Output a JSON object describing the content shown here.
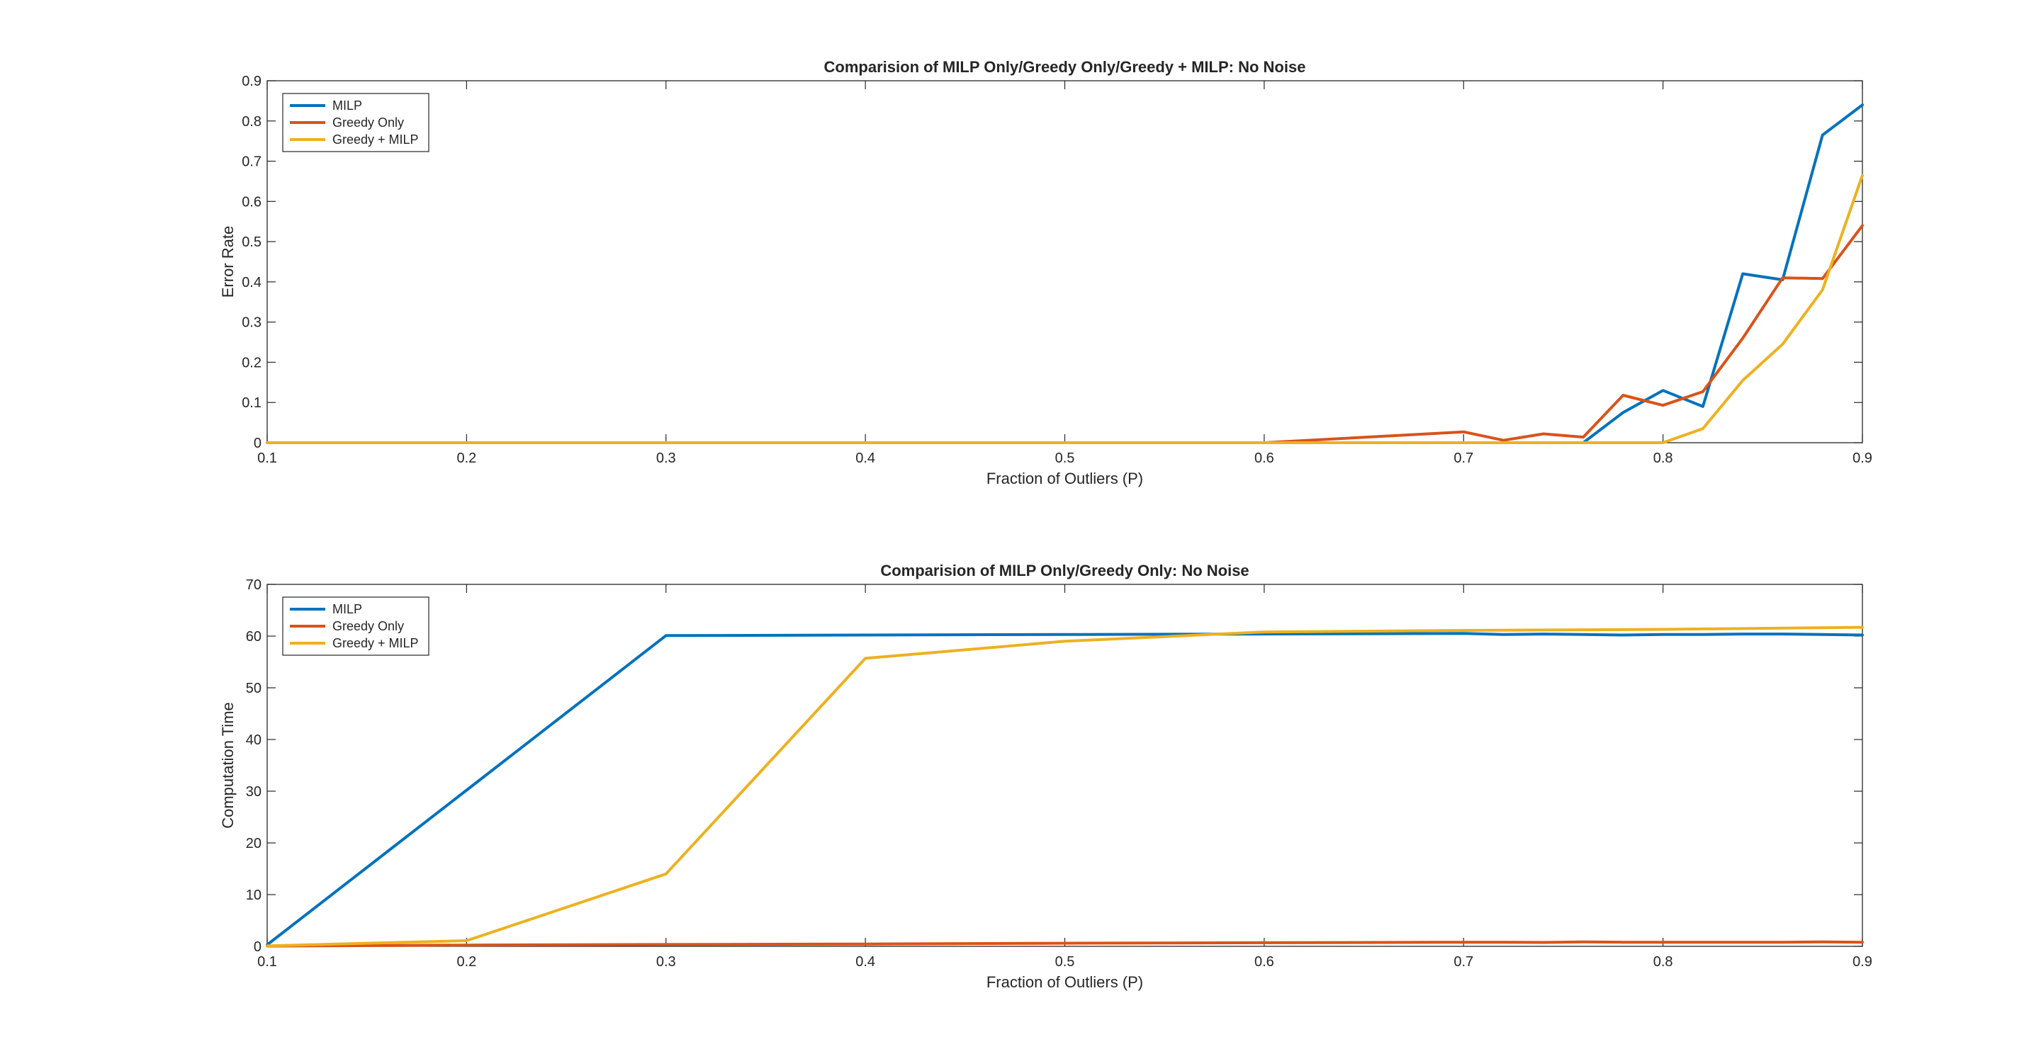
{
  "chart_data": [
    {
      "type": "line",
      "title": "Comparision of MILP Only/Greedy Only/Greedy + MILP: No Noise",
      "xlabel": "Fraction of Outliers (P)",
      "ylabel": "Error Rate",
      "xlim": [
        0.1,
        0.9
      ],
      "ylim": [
        0,
        0.9
      ],
      "xticks": [
        0.1,
        0.2,
        0.3,
        0.4,
        0.5,
        0.6,
        0.7,
        0.8,
        0.9
      ],
      "xtick_labels": [
        "0.1",
        "0.2",
        "0.3",
        "0.4",
        "0.5",
        "0.6",
        "0.7",
        "0.8",
        "0.9"
      ],
      "yticks": [
        0,
        0.1,
        0.2,
        0.3,
        0.4,
        0.5,
        0.6,
        0.7,
        0.8,
        0.9
      ],
      "ytick_labels": [
        "0",
        "0.1",
        "0.2",
        "0.3",
        "0.4",
        "0.5",
        "0.6",
        "0.7",
        "0.8",
        "0.9"
      ],
      "grid": false,
      "legend_position": "top-left",
      "series": [
        {
          "name": "MILP",
          "color": "#0072BD",
          "x": [
            0.1,
            0.2,
            0.3,
            0.4,
            0.5,
            0.6,
            0.7,
            0.72,
            0.74,
            0.76,
            0.78,
            0.8,
            0.82,
            0.84,
            0.86,
            0.88,
            0.9
          ],
          "y": [
            0,
            0,
            0,
            0,
            0,
            0,
            0,
            0,
            0,
            0,
            0.075,
            0.13,
            0.09,
            0.42,
            0.405,
            0.765,
            0.84
          ]
        },
        {
          "name": "Greedy Only",
          "color": "#D95319",
          "x": [
            0.1,
            0.2,
            0.3,
            0.4,
            0.5,
            0.6,
            0.7,
            0.72,
            0.74,
            0.76,
            0.78,
            0.8,
            0.82,
            0.84,
            0.86,
            0.88,
            0.9
          ],
          "y": [
            0,
            0,
            0,
            0,
            0,
            0,
            0.027,
            0.006,
            0.022,
            0.014,
            0.118,
            0.093,
            0.127,
            0.26,
            0.41,
            0.408,
            0.54
          ]
        },
        {
          "name": "Greedy + MILP",
          "color": "#EDB120",
          "x": [
            0.1,
            0.2,
            0.3,
            0.4,
            0.5,
            0.6,
            0.7,
            0.72,
            0.74,
            0.76,
            0.78,
            0.8,
            0.82,
            0.84,
            0.86,
            0.88,
            0.9
          ],
          "y": [
            0,
            0,
            0,
            0,
            0,
            0,
            0,
            0,
            0,
            0,
            0,
            0,
            0.035,
            0.155,
            0.245,
            0.38,
            0.665
          ]
        }
      ]
    },
    {
      "type": "line",
      "title": "Comparision of MILP Only/Greedy Only: No Noise",
      "xlabel": "Fraction of Outliers (P)",
      "ylabel": "Computation Time",
      "xlim": [
        0.1,
        0.9
      ],
      "ylim": [
        0,
        70
      ],
      "xticks": [
        0.1,
        0.2,
        0.3,
        0.4,
        0.5,
        0.6,
        0.7,
        0.8,
        0.9
      ],
      "xtick_labels": [
        "0.1",
        "0.2",
        "0.3",
        "0.4",
        "0.5",
        "0.6",
        "0.7",
        "0.8",
        "0.9"
      ],
      "yticks": [
        0,
        10,
        20,
        30,
        40,
        50,
        60,
        70
      ],
      "ytick_labels": [
        "0",
        "10",
        "20",
        "30",
        "40",
        "50",
        "60",
        "70"
      ],
      "grid": false,
      "legend_position": "top-left",
      "series": [
        {
          "name": "MILP",
          "color": "#0072BD",
          "x": [
            0.1,
            0.2,
            0.3,
            0.4,
            0.5,
            0.6,
            0.7,
            0.72,
            0.74,
            0.76,
            0.78,
            0.8,
            0.82,
            0.84,
            0.86,
            0.88,
            0.9
          ],
          "y": [
            0.3,
            30.2,
            60.1,
            60.2,
            60.3,
            60.4,
            60.5,
            60.3,
            60.4,
            60.3,
            60.2,
            60.3,
            60.3,
            60.4,
            60.4,
            60.3,
            60.2
          ]
        },
        {
          "name": "Greedy Only",
          "color": "#D95319",
          "x": [
            0.1,
            0.2,
            0.3,
            0.4,
            0.5,
            0.6,
            0.7,
            0.72,
            0.74,
            0.76,
            0.78,
            0.8,
            0.82,
            0.84,
            0.86,
            0.88,
            0.9
          ],
          "y": [
            0.05,
            0.25,
            0.35,
            0.45,
            0.6,
            0.7,
            0.8,
            0.8,
            0.75,
            0.85,
            0.8,
            0.8,
            0.8,
            0.8,
            0.8,
            0.85,
            0.8
          ]
        },
        {
          "name": "Greedy + MILP",
          "color": "#EDB120",
          "x": [
            0.1,
            0.2,
            0.3,
            0.4,
            0.5,
            0.6,
            0.7,
            0.8,
            0.9
          ],
          "y": [
            0.1,
            1.1,
            14.0,
            55.7,
            59.0,
            60.8,
            61.1,
            61.3,
            61.7
          ]
        }
      ]
    }
  ]
}
